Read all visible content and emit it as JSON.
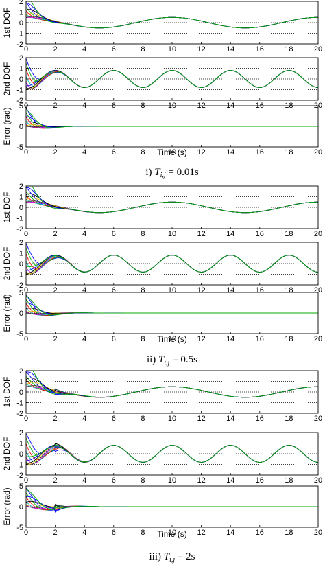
{
  "figure": {
    "panels": [
      {
        "caption_prefix": "i)",
        "caption_symbol": "T",
        "caption_subscript": "i,j",
        "caption_value": "= 0.01s",
        "xlabel": "Time (s)",
        "switch_period": 0.01
      },
      {
        "caption_prefix": "ii)",
        "caption_symbol": "T",
        "caption_subscript": "i,j",
        "caption_value": "= 0.5s",
        "xlabel": "Time (s)",
        "switch_period": 0.5
      },
      {
        "caption_prefix": "iii)",
        "caption_symbol": "T",
        "caption_subscript": "i,j",
        "caption_value": "= 2s",
        "xlabel": "Time (s)",
        "switch_period": 2
      }
    ],
    "colors": [
      "#0000ff",
      "#00aa00",
      "#ff0000",
      "#00bbbb",
      "#cc00cc",
      "#333333",
      "#ddbb00",
      "#000000"
    ]
  },
  "chart_data": [
    {
      "type": "line",
      "ylabel": "1st DOF",
      "xlim": [
        0,
        20
      ],
      "ylim": [
        -2,
        2
      ],
      "xticks": [
        0,
        2,
        4,
        6,
        8,
        10,
        12,
        14,
        16,
        18,
        20
      ],
      "yticks": [
        -2,
        -1,
        0,
        1,
        2
      ],
      "grid": "dotted horizontal",
      "reference": {
        "amplitude": 0.5,
        "period": 10,
        "phase_peak_at": 10
      },
      "agent_initial_values": [
        1.9,
        1.5,
        1.2,
        0.9,
        0.5,
        0.2,
        -0.3,
        -0.8,
        -1.3,
        -1.9
      ],
      "switch_period": 0.01
    },
    {
      "type": "line",
      "ylabel": "2nd DOF",
      "xlim": [
        0,
        20
      ],
      "ylim": [
        -2,
        2
      ],
      "xticks": [
        0,
        2,
        4,
        6,
        8,
        10,
        12,
        14,
        16,
        18,
        20
      ],
      "yticks": [
        -2,
        -1,
        0,
        1,
        2
      ],
      "grid": "dotted horizontal",
      "reference": {
        "amplitude": 0.8,
        "period": 4,
        "phase_peak_at": 10
      },
      "agent_initial_values": [
        1.9,
        1.6,
        1.3,
        0.9,
        0.5,
        0.1,
        -0.3,
        -0.6,
        -1.0,
        -1.4
      ],
      "switch_period": 0.01
    },
    {
      "type": "line",
      "ylabel": "Error (rad)",
      "xlabel": "Time (s)",
      "xlim": [
        0,
        20
      ],
      "ylim": [
        -5,
        5
      ],
      "xticks": [
        0,
        2,
        4,
        6,
        8,
        10,
        12,
        14,
        16,
        18,
        20
      ],
      "yticks": [
        -5,
        0,
        5
      ],
      "grid": "dotted horizontal",
      "agent_initial_values": [
        4.5,
        3.5,
        2.8,
        2.0,
        1.2,
        0.4,
        -0.8,
        -2.0,
        -3.2,
        -4.6
      ],
      "switch_period": 0.01
    },
    {
      "type": "line",
      "ylabel": "1st DOF",
      "xlim": [
        0,
        20
      ],
      "ylim": [
        -2,
        2
      ],
      "xticks": [
        0,
        2,
        4,
        6,
        8,
        10,
        12,
        14,
        16,
        18,
        20
      ],
      "yticks": [
        -2,
        -1,
        0,
        1,
        2
      ],
      "grid": "dotted horizontal",
      "reference": {
        "amplitude": 0.5,
        "period": 10,
        "phase_peak_at": 10
      },
      "agent_initial_values": [
        1.9,
        1.5,
        1.2,
        0.9,
        0.5,
        0.2,
        -0.3,
        -0.8,
        -1.3,
        -1.9
      ],
      "switch_period": 0.5
    },
    {
      "type": "line",
      "ylabel": "2nd DOF",
      "xlim": [
        0,
        20
      ],
      "ylim": [
        -2,
        2
      ],
      "xticks": [
        0,
        2,
        4,
        6,
        8,
        10,
        12,
        14,
        16,
        18,
        20
      ],
      "yticks": [
        -2,
        -1,
        0,
        1,
        2
      ],
      "grid": "dotted horizontal",
      "reference": {
        "amplitude": 0.8,
        "period": 4,
        "phase_peak_at": 10
      },
      "agent_initial_values": [
        1.9,
        1.6,
        1.3,
        0.9,
        0.5,
        0.1,
        -0.3,
        -0.6,
        -1.0,
        -1.4
      ],
      "switch_period": 0.5
    },
    {
      "type": "line",
      "ylabel": "Error (rad)",
      "xlabel": "Time (s)",
      "xlim": [
        0,
        20
      ],
      "ylim": [
        -5,
        5
      ],
      "xticks": [
        0,
        2,
        4,
        6,
        8,
        10,
        12,
        14,
        16,
        18,
        20
      ],
      "yticks": [
        -5,
        0,
        5
      ],
      "grid": "dotted horizontal",
      "agent_initial_values": [
        4.5,
        3.5,
        2.8,
        2.0,
        1.2,
        0.4,
        -0.8,
        -2.0,
        -3.2,
        -4.6
      ],
      "switch_period": 0.5
    },
    {
      "type": "line",
      "ylabel": "1st DOF",
      "xlim": [
        0,
        20
      ],
      "ylim": [
        -2,
        2
      ],
      "xticks": [
        0,
        2,
        4,
        6,
        8,
        10,
        12,
        14,
        16,
        18,
        20
      ],
      "yticks": [
        -2,
        -1,
        0,
        1,
        2
      ],
      "grid": "dotted horizontal",
      "reference": {
        "amplitude": 0.5,
        "period": 10,
        "phase_peak_at": 10
      },
      "agent_initial_values": [
        1.9,
        1.5,
        1.2,
        0.9,
        0.5,
        0.2,
        -0.3,
        -0.8,
        -1.3,
        -1.9
      ],
      "switch_period": 2
    },
    {
      "type": "line",
      "ylabel": "2nd DOF",
      "xlim": [
        0,
        20
      ],
      "ylim": [
        -2,
        2
      ],
      "xticks": [
        0,
        2,
        4,
        6,
        8,
        10,
        12,
        14,
        16,
        18,
        20
      ],
      "yticks": [
        -2,
        -1,
        0,
        1,
        2
      ],
      "grid": "dotted horizontal",
      "reference": {
        "amplitude": 0.8,
        "period": 4,
        "phase_peak_at": 10
      },
      "agent_initial_values": [
        1.9,
        1.6,
        1.3,
        0.9,
        0.5,
        0.1,
        -0.3,
        -0.6,
        -1.0,
        -1.4
      ],
      "switch_period": 2
    },
    {
      "type": "line",
      "ylabel": "Error (rad)",
      "xlabel": "Time (s)",
      "xlim": [
        0,
        20
      ],
      "ylim": [
        -5,
        5
      ],
      "xticks": [
        0,
        2,
        4,
        6,
        8,
        10,
        12,
        14,
        16,
        18,
        20
      ],
      "yticks": [
        -5,
        0,
        5
      ],
      "grid": "dotted horizontal",
      "agent_initial_values": [
        4.5,
        3.5,
        2.8,
        2.0,
        1.2,
        0.4,
        -0.8,
        -2.0,
        -3.2,
        -4.6
      ],
      "switch_period": 2
    }
  ]
}
